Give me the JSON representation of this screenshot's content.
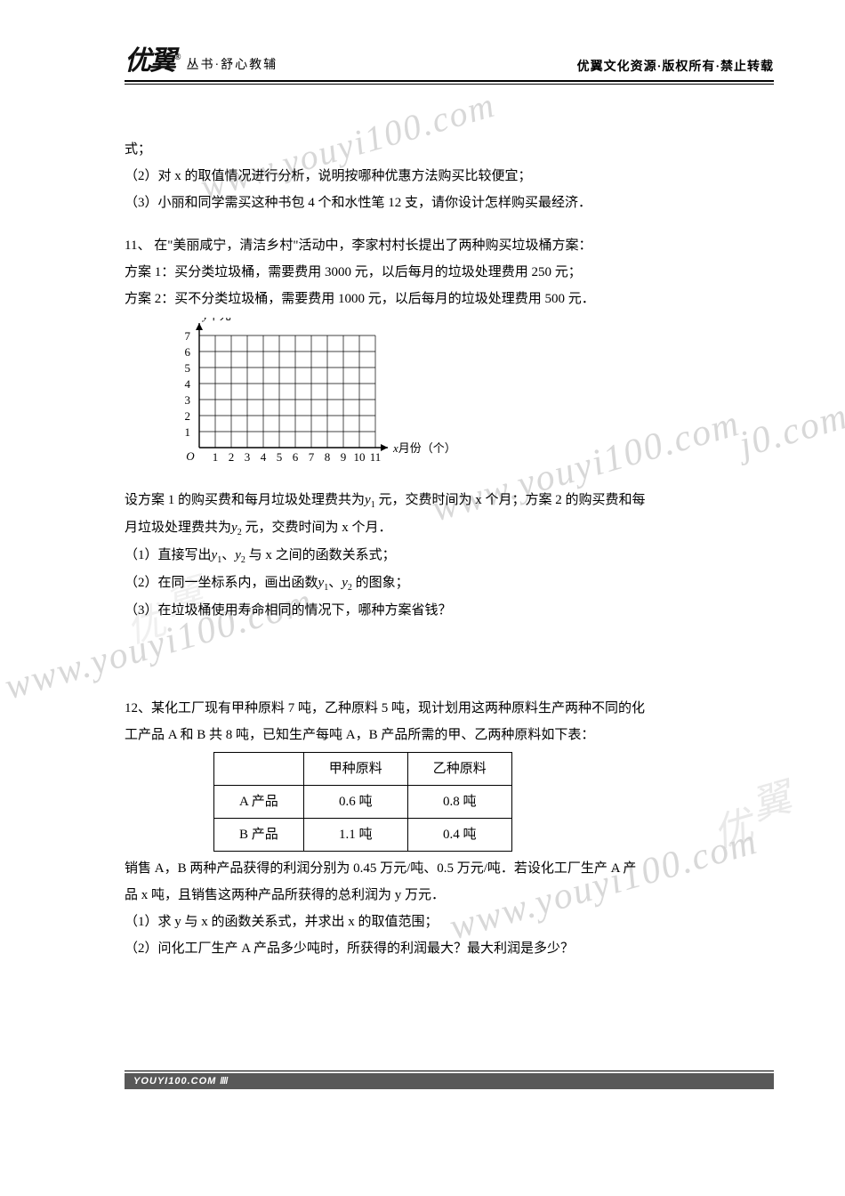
{
  "header": {
    "logo": "优翼",
    "logo_suffix": "®",
    "sub": "丛书·舒心教辅",
    "right": "优翼文化资源·版权所有·禁止转载"
  },
  "lines": {
    "l1": "式；",
    "l2": "（2）对 x 的取值情况进行分析，说明按哪种优惠方法购买比较便宜；",
    "l3": "（3）小丽和同学需买这种书包 4 个和水性笔 12 支，请你设计怎样购买最经济．",
    "l4": "11、 在\"美丽咸宁，清洁乡村\"活动中，李家村村长提出了两种购买垃圾桶方案：",
    "l5": "方案 1：买分类垃圾桶，需要费用 3000 元，以后每月的垃圾处理费用 250 元；",
    "l6": "方案 2：买不分类垃圾桶，需要费用 1000 元，以后每月的垃圾处理费用 500 元．",
    "l7a": "设方案 1 的购买费和每月垃圾处理费共为",
    "l7b": "元，交费时间为 x 个月；方案 2 的购买费和每",
    "l8a": "月垃圾处理费共为",
    "l8b": "元，交费时间为 x 个月．",
    "l9": "（1）直接写出",
    "l9b": "与 x 之间的函数关系式；",
    "l10": "（2）在同一坐标系内，画出函数",
    "l10b": "的图象；",
    "l11": "（3）在垃圾桶使用寿命相同的情况下，哪种方案省钱？",
    "l12": "12、某化工厂现有甲种原料 7 吨，乙种原料 5 吨，现计划用这两种原料生产两种不同的化",
    "l13": "工产品 A 和 B 共 8 吨，已知生产每吨 A，B 产品所需的甲、乙两种原料如下表：",
    "l14": "销售 A，B 两种产品获得的利润分别为 0.45 万元/吨、0.5 万元/吨．若设化工厂生产 A 产",
    "l15": "品 x 吨，且销售这两种产品所获得的总利润为 y 万元．",
    "l16": "（1）求 y 与 x 的函数关系式，并求出 x 的取值范围；",
    "l17": "（2）问化工厂生产 A 产品多少吨时，所获得的利润最大？最大利润是多少？"
  },
  "chart": {
    "y_label": "y千元",
    "x_label": "x月份（个）",
    "x_min": 0,
    "x_max": 11,
    "y_min": 0,
    "y_max": 7,
    "y_ticks": [
      1,
      2,
      3,
      4,
      5,
      6,
      7
    ],
    "x_ticks": [
      1,
      2,
      3,
      4,
      5,
      6,
      7,
      8,
      9,
      10,
      11
    ],
    "cell": 18,
    "axis_color": "#000000",
    "grid_color": "#000000",
    "font_size": 13
  },
  "table": {
    "head": [
      "",
      "甲种原料",
      "乙种原料"
    ],
    "rows": [
      [
        "A 产品",
        "0.6 吨",
        "0.8 吨"
      ],
      [
        "B 产品",
        "1.1 吨",
        "0.4 吨"
      ]
    ]
  },
  "watermark": {
    "text": "www.youyi100.com",
    "text_partial_right": "j0.com",
    "logo_chars": [
      "优",
      "翼"
    ]
  },
  "footer": "YOUYI100.COM"
}
